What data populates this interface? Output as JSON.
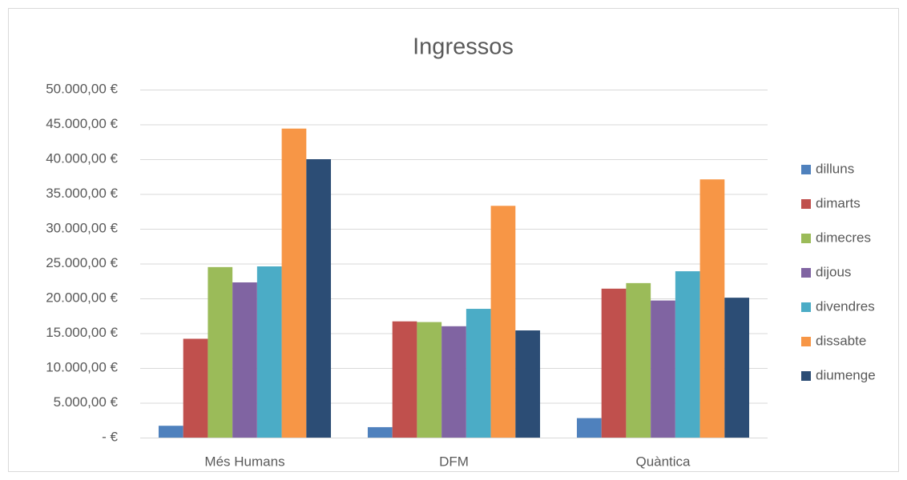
{
  "chart_data": {
    "type": "bar",
    "title": "Ingressos",
    "categories": [
      "Més Humans",
      "DFM",
      "Quàntica"
    ],
    "series": [
      {
        "name": "dilluns",
        "color": "#4f81bd",
        "values": [
          1700,
          1500,
          2800
        ]
      },
      {
        "name": "dimarts",
        "color": "#c0504d",
        "values": [
          14200,
          16700,
          21400
        ]
      },
      {
        "name": "dimecres",
        "color": "#9bbb59",
        "values": [
          24500,
          16600,
          22200
        ]
      },
      {
        "name": "dijous",
        "color": "#8064a2",
        "values": [
          22300,
          16000,
          19700
        ]
      },
      {
        "name": "divendres",
        "color": "#4bacc6",
        "values": [
          24600,
          18500,
          23900
        ]
      },
      {
        "name": "dissabte",
        "color": "#f79646",
        "values": [
          44400,
          33300,
          37100
        ]
      },
      {
        "name": "diumenge",
        "color": "#2c4d75",
        "values": [
          40000,
          15400,
          20100
        ]
      }
    ],
    "ylim": [
      0,
      50000
    ],
    "yticks": [
      {
        "value": 0,
        "label": "-   €"
      },
      {
        "value": 5000,
        "label": "5.000,00 €"
      },
      {
        "value": 10000,
        "label": "10.000,00 €"
      },
      {
        "value": 15000,
        "label": "15.000,00 €"
      },
      {
        "value": 20000,
        "label": "20.000,00 €"
      },
      {
        "value": 25000,
        "label": "25.000,00 €"
      },
      {
        "value": 30000,
        "label": "30.000,00 €"
      },
      {
        "value": 35000,
        "label": "35.000,00 €"
      },
      {
        "value": 40000,
        "label": "40.000,00 €"
      },
      {
        "value": 45000,
        "label": "45.000,00 €"
      },
      {
        "value": 50000,
        "label": "50.000,00 €"
      }
    ],
    "grid": true,
    "legend": "right"
  }
}
